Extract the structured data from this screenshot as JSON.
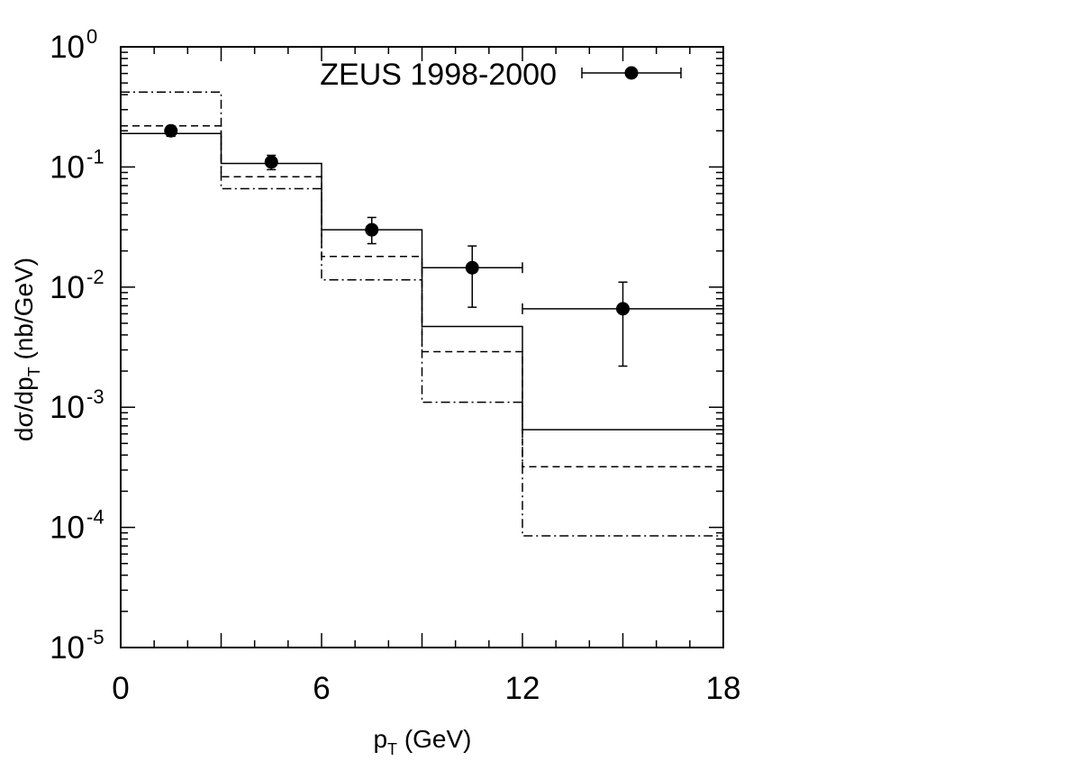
{
  "chart_data": {
    "type": "scatter",
    "title": "",
    "xlabel": {
      "main": "p",
      "sub": "T",
      "suffix": " (GeV)"
    },
    "ylabel": {
      "main": "dσ/dp",
      "sub": "T",
      "suffix": " (nb/GeV)"
    },
    "xlim": [
      0,
      18
    ],
    "ylim": [
      1e-05,
      1
    ],
    "yscale": "log",
    "x_ticks": [
      "0",
      "6",
      "12",
      "18"
    ],
    "y_ticks": [
      {
        "base": "10",
        "exp": "0",
        "value": 1
      },
      {
        "base": "10",
        "exp": "-1",
        "value": 0.1
      },
      {
        "base": "10",
        "exp": "-2",
        "value": 0.01
      },
      {
        "base": "10",
        "exp": "-3",
        "value": 0.001
      },
      {
        "base": "10",
        "exp": "-4",
        "value": 0.0001
      },
      {
        "base": "10",
        "exp": "-5",
        "value": 1e-05
      }
    ],
    "legend": {
      "label": "ZEUS 1998-2000",
      "placement": "top-right"
    },
    "data_points": {
      "name": "ZEUS 1998-2000",
      "x": [
        1.5,
        4.5,
        7.5,
        10.5,
        15.0
      ],
      "y": [
        0.2,
        0.11,
        0.03,
        0.0145,
        0.0066
      ],
      "y_err_low": [
        0.02,
        0.015,
        0.007,
        0.0077,
        0.0044
      ],
      "y_err_high": [
        0.02,
        0.015,
        0.008,
        0.0075,
        0.0044
      ],
      "x_err_low": [
        0,
        0,
        0,
        1.5,
        3.0
      ],
      "x_err_high": [
        0,
        0,
        0,
        1.5,
        3.0
      ]
    },
    "bin_edges": [
      0,
      3,
      6,
      9,
      12,
      18
    ],
    "histograms": [
      {
        "style": "solid",
        "values": [
          0.19,
          0.107,
          0.03,
          0.0047,
          0.00065
        ]
      },
      {
        "style": "dashed",
        "values": [
          0.22,
          0.083,
          0.018,
          0.0029,
          0.00032
        ]
      },
      {
        "style": "dashdot",
        "values": [
          0.42,
          0.066,
          0.0115,
          0.0011,
          8.5e-05
        ]
      }
    ]
  }
}
